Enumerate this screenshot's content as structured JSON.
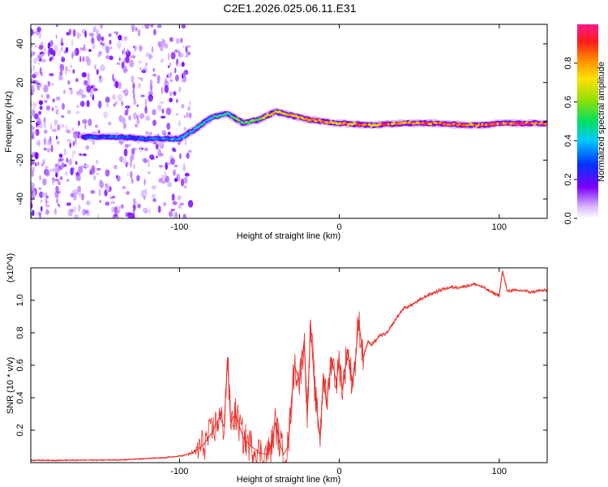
{
  "title": "C2E1.2026.025.06.11.E31",
  "chart_data": [
    {
      "type": "heatmap",
      "xlabel": "Height of straight line (km)",
      "ylabel": "Frequency (Hz)",
      "xlim": [
        -193,
        130
      ],
      "ylim": [
        -50,
        50
      ],
      "xticks": [
        -100,
        0,
        100
      ],
      "xtick_labels": [
        "-100",
        "0",
        "100"
      ],
      "yticks": [
        40,
        20,
        0,
        -20,
        -40
      ],
      "ytick_labels": [
        "40",
        "20",
        "0",
        "-20",
        "-40"
      ],
      "ridge": {
        "x": [
          -160,
          -140,
          -120,
          -100,
          -90,
          -80,
          -70,
          -60,
          -50,
          -40,
          -30,
          -20,
          -10,
          0,
          20,
          40,
          60,
          80,
          90,
          100,
          130
        ],
        "y": [
          -8,
          -8,
          -9,
          -9,
          -4,
          2,
          4,
          -1,
          1,
          5,
          3,
          1,
          0,
          -1,
          -2,
          -1,
          -1,
          -2,
          -2,
          -1,
          -1
        ],
        "amplitude": [
          0.3,
          0.35,
          0.35,
          0.4,
          0.45,
          0.5,
          0.55,
          0.6,
          0.7,
          0.8,
          0.8,
          0.85,
          0.85,
          0.9,
          0.9,
          0.92,
          0.95,
          0.95,
          0.9,
          0.95,
          0.95
        ]
      },
      "colorbar": {
        "label": "Normalized spectral amplitude",
        "range": [
          0,
          1
        ],
        "ticks": [
          0.0,
          0.2,
          0.4,
          0.6,
          0.8
        ],
        "tick_labels": [
          "0.0",
          "0.2",
          "0.4",
          "0.6",
          "0.8"
        ]
      }
    },
    {
      "type": "line",
      "xlabel": "Height of straight line (km)",
      "ylabel": "SNR (10 * v/v)",
      "scale_label": "(x10^4)",
      "xlim": [
        -193,
        130
      ],
      "ylim": [
        0,
        1.2
      ],
      "xticks": [
        -100,
        0,
        100
      ],
      "xtick_labels": [
        "-100",
        "0",
        "100"
      ],
      "yticks": [
        0.2,
        0.4,
        0.6,
        0.8,
        1.0
      ],
      "ytick_labels": [
        "0.2",
        "0.4",
        "0.6",
        "0.8",
        "1.0"
      ],
      "color": "#e8302a",
      "series": [
        {
          "name": "SNR",
          "x": [
            -193,
            -180,
            -160,
            -140,
            -130,
            -120,
            -110,
            -100,
            -95,
            -90,
            -85,
            -80,
            -75,
            -72,
            -70,
            -68,
            -65,
            -60,
            -55,
            -50,
            -45,
            -42,
            -40,
            -38,
            -35,
            -32,
            -30,
            -28,
            -25,
            -22,
            -20,
            -18,
            -15,
            -12,
            -10,
            -8,
            -5,
            -2,
            0,
            2,
            5,
            8,
            10,
            12,
            15,
            18,
            20,
            25,
            30,
            35,
            40,
            45,
            50,
            55,
            60,
            65,
            70,
            75,
            80,
            85,
            90,
            95,
            100,
            102,
            105,
            110,
            115,
            120,
            125,
            130
          ],
          "y": [
            0.015,
            0.014,
            0.015,
            0.017,
            0.02,
            0.025,
            0.03,
            0.04,
            0.05,
            0.07,
            0.11,
            0.18,
            0.28,
            0.22,
            0.65,
            0.25,
            0.3,
            0.15,
            0.1,
            0.06,
            0.05,
            0.12,
            0.25,
            0.15,
            0.05,
            0.1,
            0.38,
            0.6,
            0.5,
            0.75,
            0.3,
            0.85,
            0.4,
            0.15,
            0.55,
            0.35,
            0.65,
            0.5,
            0.62,
            0.45,
            0.7,
            0.5,
            0.62,
            0.88,
            0.65,
            0.75,
            0.72,
            0.78,
            0.8,
            0.88,
            0.95,
            0.97,
            1.0,
            1.03,
            1.05,
            1.07,
            1.08,
            1.08,
            1.09,
            1.1,
            1.08,
            1.05,
            1.03,
            1.18,
            1.06,
            1.06,
            1.06,
            1.05,
            1.06,
            1.06
          ]
        }
      ]
    }
  ]
}
